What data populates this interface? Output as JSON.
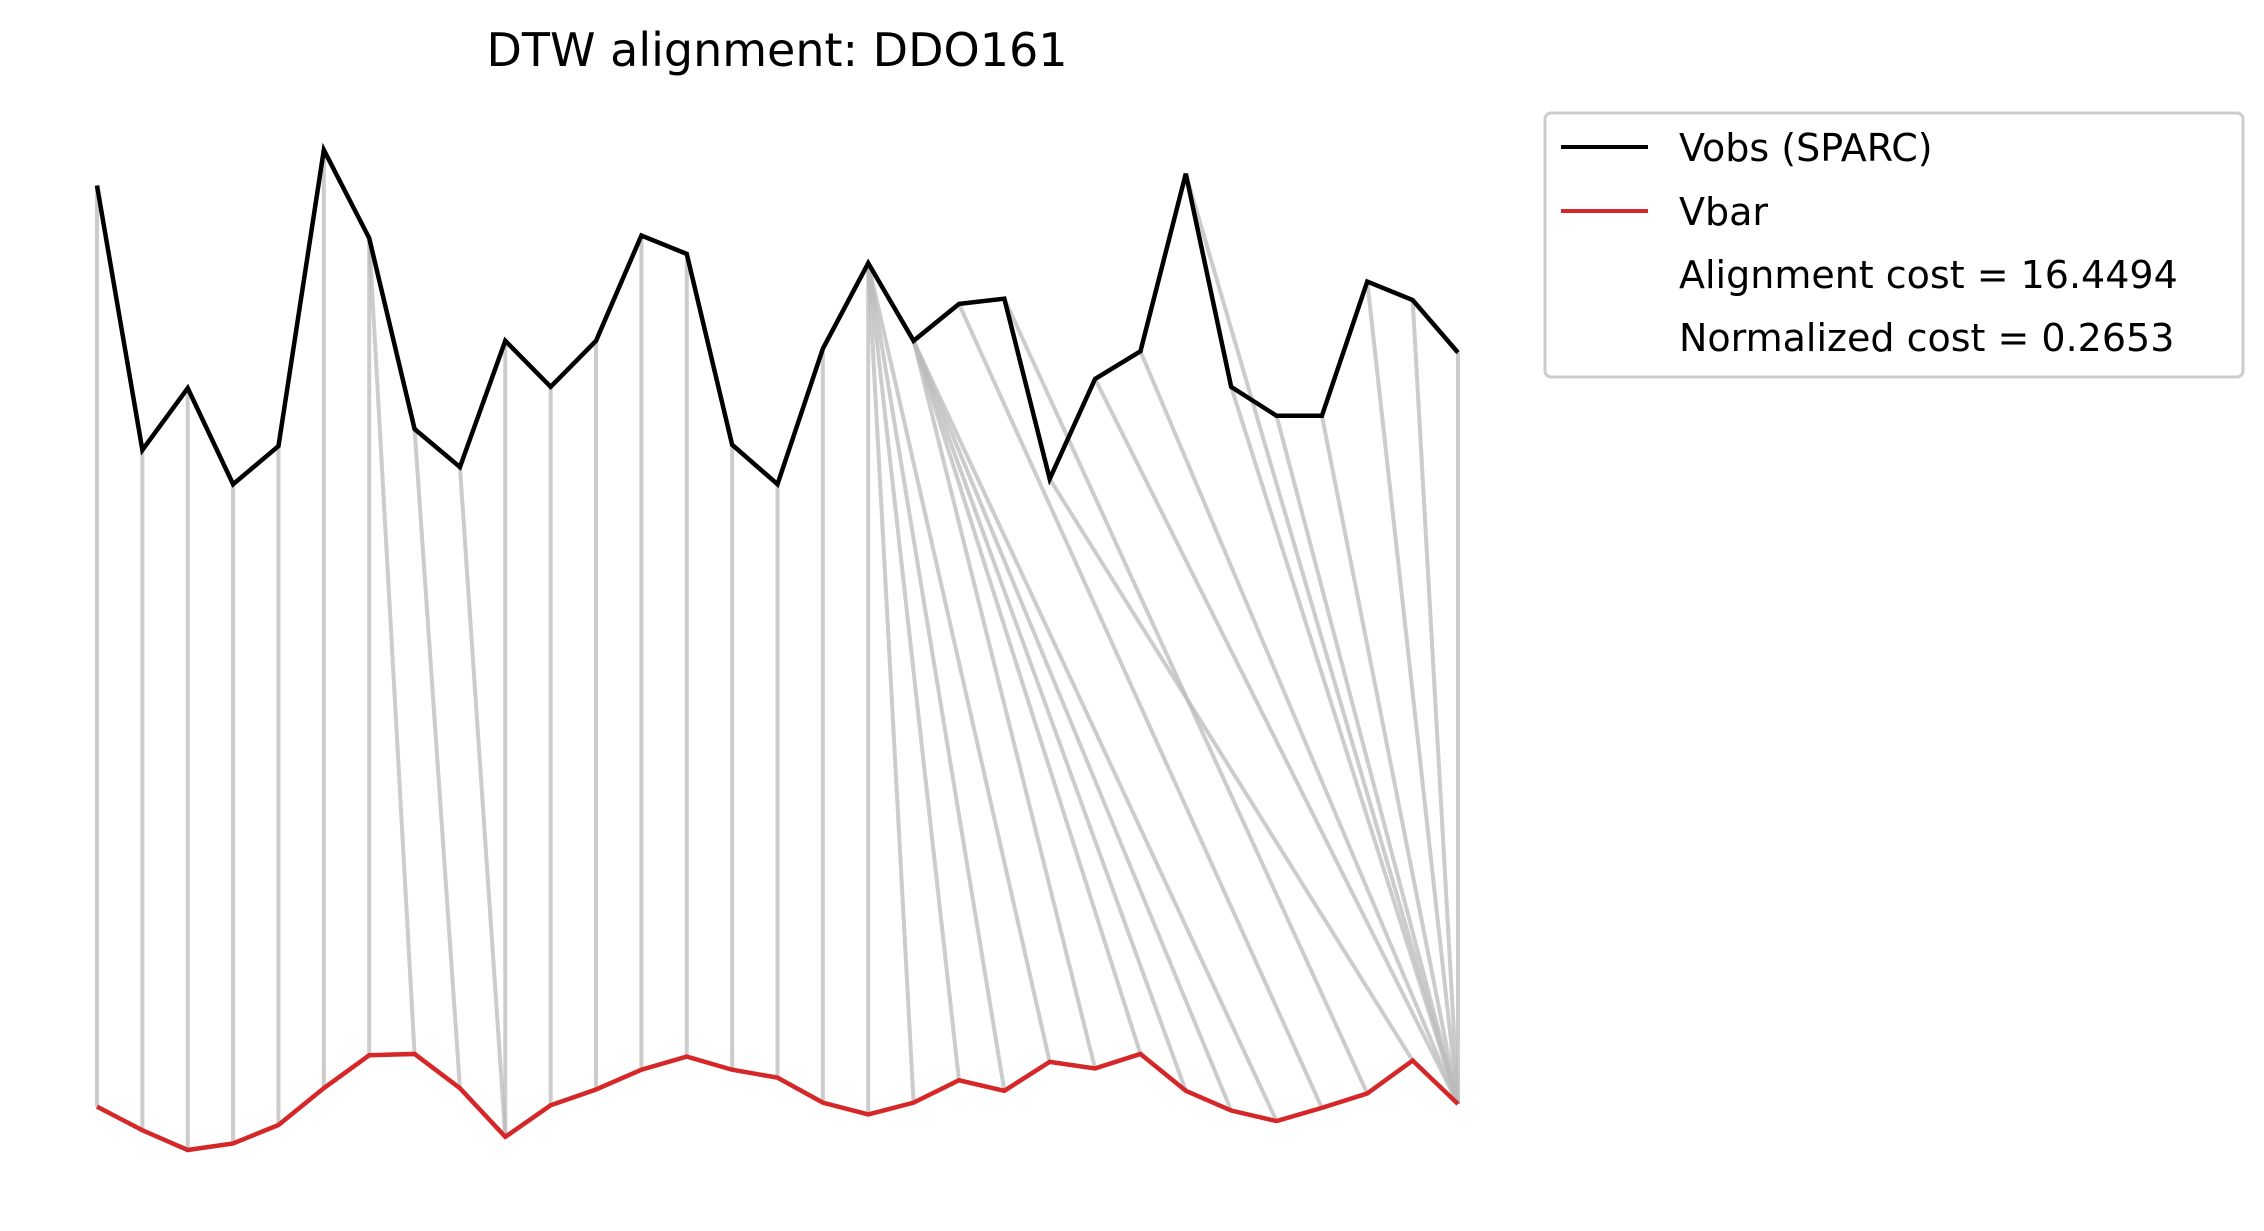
{
  "chart_data": {
    "type": "line",
    "title": "DTW alignment: DDO161",
    "xlabel": "",
    "ylabel": "",
    "axes_visible": false,
    "grid": false,
    "legend_placement": "outside right, top",
    "legend": {
      "entries": [
        "Vobs (SPARC)",
        "Vbar"
      ],
      "extra_text": [
        "Alignment cost = 16.4494",
        "Normalized cost = 0.2653"
      ]
    },
    "colors": {
      "vobs": "#000000",
      "vbar": "#d62728",
      "connector": "#bbbbbb",
      "legend_border": "#cccccc"
    },
    "series": [
      {
        "name": "Vobs (SPARC)",
        "x": [
          0,
          1,
          2,
          3,
          4,
          5,
          6,
          7,
          8,
          9,
          10,
          11,
          12,
          13,
          14,
          15,
          16,
          17,
          18,
          19,
          20,
          21,
          22,
          23,
          24,
          25,
          26,
          27,
          28,
          29,
          30
        ],
        "values": [
          1.08,
          -0.93,
          -0.46,
          -1.19,
          -0.9,
          1.35,
          0.68,
          -0.77,
          -1.06,
          -0.1,
          -0.45,
          -0.1,
          0.7,
          0.56,
          -0.89,
          -1.19,
          -0.16,
          0.49,
          -0.1,
          0.18,
          0.22,
          -1.15,
          -0.39,
          -0.18,
          1.17,
          -0.45,
          -0.67,
          -0.67,
          0.35,
          0.21,
          -0.19
        ]
      },
      {
        "name": "Vbar",
        "x": [
          0,
          1,
          2,
          3,
          4,
          5,
          6,
          7,
          8,
          9,
          10,
          11,
          12,
          13,
          14,
          15,
          16,
          17,
          18,
          19,
          20,
          21,
          22,
          23,
          24,
          25,
          26,
          27,
          28,
          29,
          30
        ],
        "values": [
          -5.92,
          -6.1,
          -6.25,
          -6.2,
          -6.06,
          -5.78,
          -5.53,
          -5.52,
          -5.78,
          -6.15,
          -5.91,
          -5.79,
          -5.64,
          -5.54,
          -5.64,
          -5.7,
          -5.89,
          -5.98,
          -5.89,
          -5.72,
          -5.8,
          -5.58,
          -5.63,
          -5.52,
          -5.8,
          -5.95,
          -6.03,
          -5.93,
          -5.82,
          -5.57,
          -5.9
        ]
      }
    ],
    "alignment_pairs": [
      [
        0,
        0
      ],
      [
        1,
        1
      ],
      [
        2,
        2
      ],
      [
        3,
        3
      ],
      [
        4,
        4
      ],
      [
        5,
        5
      ],
      [
        6,
        6
      ],
      [
        6,
        7
      ],
      [
        7,
        8
      ],
      [
        8,
        9
      ],
      [
        9,
        9
      ],
      [
        10,
        10
      ],
      [
        11,
        11
      ],
      [
        12,
        12
      ],
      [
        13,
        13
      ],
      [
        14,
        14
      ],
      [
        15,
        15
      ],
      [
        16,
        16
      ],
      [
        17,
        17
      ],
      [
        17,
        18
      ],
      [
        17,
        19
      ],
      [
        17,
        20
      ],
      [
        17,
        21
      ],
      [
        18,
        22
      ],
      [
        18,
        23
      ],
      [
        18,
        24
      ],
      [
        18,
        25
      ],
      [
        18,
        26
      ],
      [
        19,
        27
      ],
      [
        20,
        28
      ],
      [
        21,
        29
      ],
      [
        22,
        30
      ],
      [
        23,
        30
      ],
      [
        24,
        30
      ],
      [
        25,
        30
      ],
      [
        26,
        30
      ],
      [
        27,
        30
      ],
      [
        28,
        30
      ],
      [
        29,
        30
      ],
      [
        30,
        30
      ]
    ]
  }
}
